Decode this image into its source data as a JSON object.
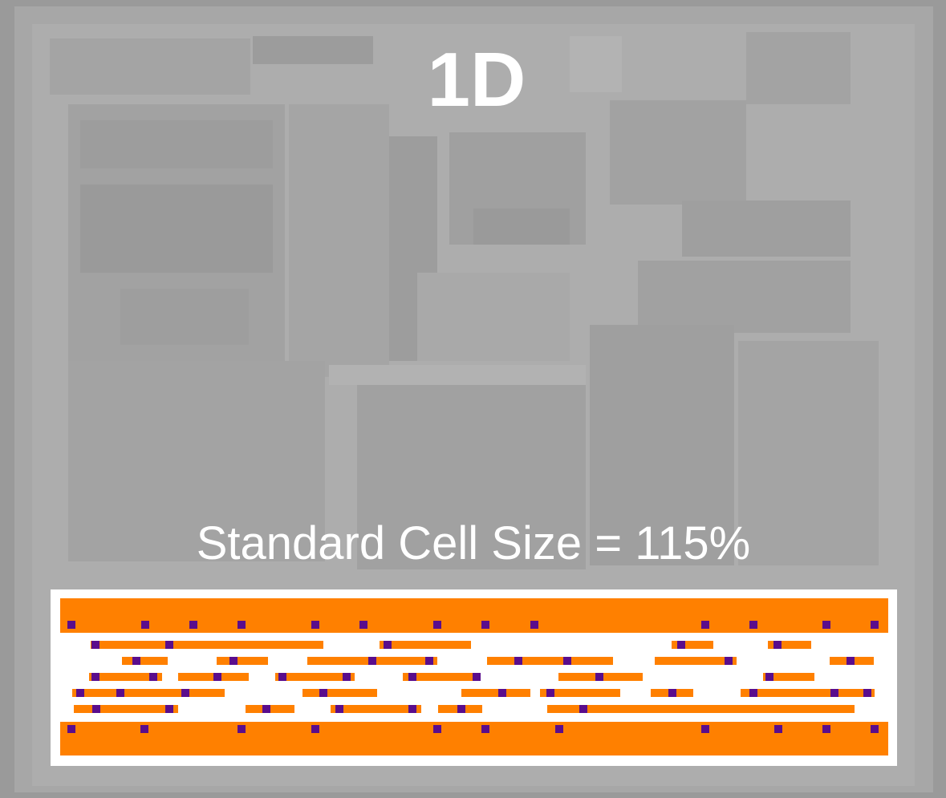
{
  "title": "1D",
  "caption": "Standard Cell Size = 115%"
}
